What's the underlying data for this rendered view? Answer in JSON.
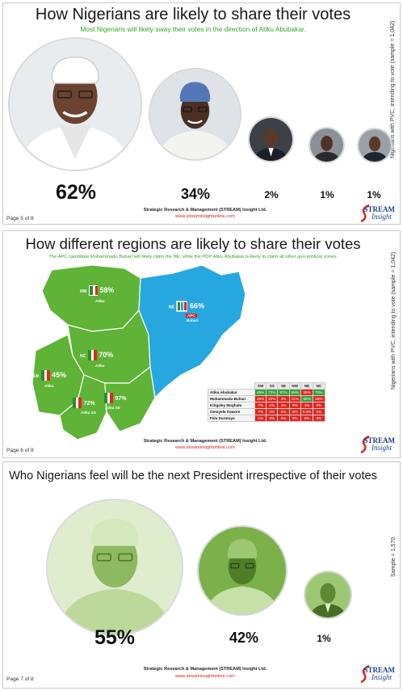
{
  "panel1": {
    "title": "How Nigerians are likely to share their votes",
    "subtitle": "Most Nigerians will likely sway their votes in the direction of Atiku Abubakar.",
    "side_label": "Nigerians with PVC, intending to vote (sample = 1,042)",
    "candidates": [
      {
        "percent": "62%"
      },
      {
        "percent": "34%"
      },
      {
        "percent": "2%"
      },
      {
        "percent": "1%"
      },
      {
        "percent": "1%"
      }
    ],
    "footer": "Strategic Research & Management (STREAM) Insight Ltd.",
    "url": "www.streaminsightonline.com",
    "page": "Page 5 of 8"
  },
  "panel2": {
    "title": "How different regions are likely to share their votes",
    "subtitle": "The APC candidate Muhammadu Buhari will likely claim the NE, while the PDP Atiku Abubakar is likely to claim all other geo-political zones.",
    "side_label": "Nigerians with PVC, intending to vote (sample = 1,042)",
    "regions": [
      {
        "code": "NW",
        "percent": "58%",
        "name": "Atiku"
      },
      {
        "code": "NE",
        "percent": "66%",
        "name": "Buhari",
        "party": "APC"
      },
      {
        "code": "NC",
        "percent": "70%",
        "name": "Atiku"
      },
      {
        "code": "SW",
        "percent": "45%",
        "name": "Atiku"
      },
      {
        "code": "SS",
        "percent": "72%",
        "name": "Atiku"
      },
      {
        "code": "SE",
        "percent": "97%",
        "name": "Atiku"
      }
    ],
    "table": {
      "columns": [
        "",
        "SW",
        "SS",
        "SE",
        "NW",
        "NE",
        "NC"
      ],
      "rows": [
        {
          "name": "Atiku Abubakar",
          "values": [
            "45%",
            "72%",
            "97%",
            "58%",
            "25%",
            "70%"
          ],
          "colors": [
            "g",
            "g",
            "g",
            "g",
            "r",
            "g"
          ]
        },
        {
          "name": "Muhammadu Buhari",
          "values": [
            "39%",
            "22%",
            "3%",
            "41%",
            "66%",
            "28%"
          ],
          "colors": [
            "r",
            "r",
            "r",
            "r",
            "g",
            "r"
          ]
        },
        {
          "name": "Kingsley Moghalu",
          "values": [
            "7%",
            "1%",
            "1%",
            "0%",
            "1%",
            "0%"
          ],
          "colors": [
            "r",
            "r",
            "r",
            "r",
            "r",
            "r"
          ]
        },
        {
          "name": "Omoyele Sowore",
          "values": [
            "7%",
            "0%",
            "0%",
            "0%",
            "0.3%",
            "1%"
          ],
          "colors": [
            "r",
            "r",
            "r",
            "r",
            "r",
            "r"
          ]
        },
        {
          "name": "Fela Durotoye",
          "values": [
            "1%",
            "0%",
            "0%",
            "0%",
            "0%",
            "0%"
          ],
          "colors": [
            "r",
            "r",
            "r",
            "r",
            "r",
            "r"
          ]
        }
      ]
    },
    "colors": {
      "pdp_green": "#5fb336",
      "apc_blue": "#27a7e0"
    },
    "footer": "Strategic Research & Management (STREAM) Insight Ltd.",
    "url": "www.streaminsightonline.com",
    "page": "Page 6 of 8"
  },
  "panel3": {
    "title": "Who Nigerians feel will be the next President irrespective of their votes",
    "side_label": "Sample = 1,570",
    "candidates": [
      {
        "percent": "55%"
      },
      {
        "percent": "42%"
      },
      {
        "percent": "1%"
      }
    ],
    "footer": "Strategic Research & Management (STREAM) Insight Ltd.",
    "url": "www.streaminsightonline.com",
    "page": "Page 7 of 8"
  },
  "logo": {
    "line1": "STREAM",
    "line2": "Insight"
  }
}
